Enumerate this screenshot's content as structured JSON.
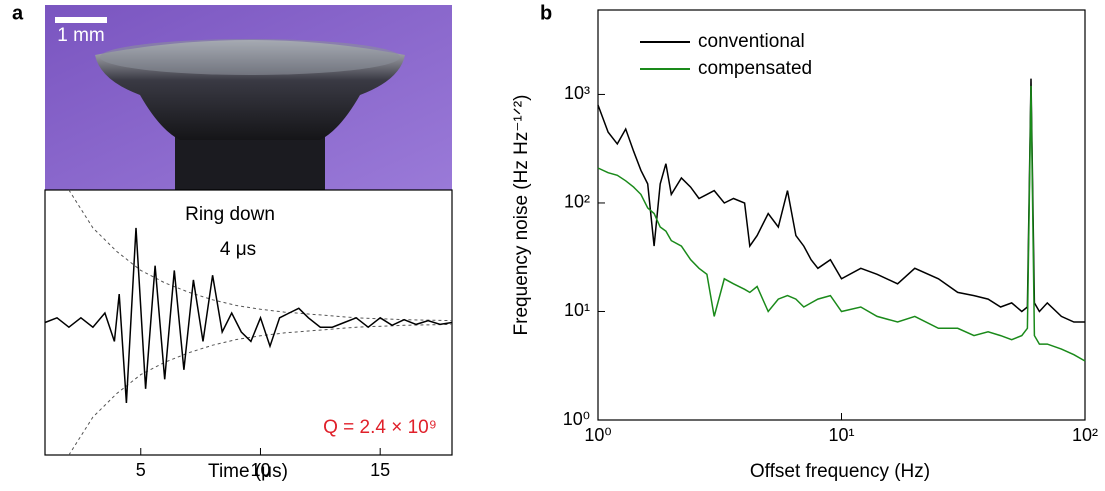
{
  "chart_data": [
    {
      "type": "line",
      "panel": "a",
      "scale_bar": "1 mm",
      "annotations": [
        "Ring down",
        "4 μs",
        "Q = 2.4 × 10⁹"
      ],
      "xlabel": "Time (μs)",
      "xlim": [
        1,
        18
      ],
      "xticks": [
        5,
        10,
        15
      ],
      "ylim": [
        -1.4,
        1.4
      ],
      "x": [
        1,
        1.5,
        2,
        2.5,
        3,
        3.5,
        3.9,
        4.1,
        4.4,
        4.8,
        5.2,
        5.6,
        6.0,
        6.4,
        6.8,
        7.2,
        7.6,
        8.0,
        8.4,
        8.8,
        9.2,
        9.6,
        10,
        10.4,
        10.8,
        11.2,
        11.6,
        12,
        12.5,
        13,
        13.5,
        14,
        14.5,
        15,
        15.5,
        16,
        16.5,
        17,
        17.5,
        18
      ],
      "series": [
        {
          "color": "#000000",
          "values": [
            0,
            0.05,
            -0.05,
            0.05,
            -0.05,
            0.1,
            -0.2,
            0.3,
            -0.85,
            1.0,
            -0.7,
            0.6,
            -0.6,
            0.55,
            -0.5,
            0.45,
            -0.2,
            0.5,
            -0.1,
            0.1,
            -0.1,
            -0.2,
            0.05,
            -0.25,
            0.05,
            0.1,
            0.15,
            0.05,
            -0.05,
            -0.05,
            0,
            0.05,
            -0.05,
            0.05,
            -0.03,
            0.03,
            -0.02,
            0.02,
            -0.02,
            0
          ]
        }
      ],
      "envelope": {
        "color": "#555555",
        "x": [
          2,
          3,
          4,
          5,
          6,
          7,
          8,
          9,
          10,
          11,
          12,
          14,
          16,
          18
        ],
        "upper": [
          1.4,
          1.0,
          0.75,
          0.55,
          0.42,
          0.32,
          0.24,
          0.18,
          0.14,
          0.11,
          0.09,
          0.05,
          0.03,
          0.02
        ],
        "lower": [
          -1.4,
          -1.0,
          -0.75,
          -0.55,
          -0.42,
          -0.32,
          -0.24,
          -0.18,
          -0.14,
          -0.11,
          -0.09,
          -0.05,
          -0.03,
          -0.02
        ]
      }
    },
    {
      "type": "line",
      "panel": "b",
      "xlabel": "Offset frequency (Hz)",
      "ylabel": "Frequency noise (Hz Hz⁻¹ᐟ²)",
      "xlog": true,
      "ylog": true,
      "xlim": [
        1,
        100
      ],
      "ylim": [
        1,
        6000
      ],
      "xticks": [
        {
          "value": 1,
          "label": "10⁰"
        },
        {
          "value": 10,
          "label": "10¹"
        },
        {
          "value": 100,
          "label": "10²"
        }
      ],
      "yticks": [
        {
          "value": 1,
          "label": "10⁰"
        },
        {
          "value": 10,
          "label": "10¹"
        },
        {
          "value": 100,
          "label": "10²"
        },
        {
          "value": 1000,
          "label": "10³"
        }
      ],
      "legend": "upper left",
      "x": [
        1,
        1.1,
        1.2,
        1.3,
        1.4,
        1.5,
        1.6,
        1.7,
        1.8,
        1.9,
        2.0,
        2.2,
        2.4,
        2.6,
        2.8,
        3.0,
        3.3,
        3.6,
        4.0,
        4.2,
        4.5,
        5,
        5.5,
        6,
        6.5,
        7,
        7.5,
        8,
        9,
        10,
        12,
        14,
        17,
        20,
        25,
        30,
        35,
        40,
        45,
        50,
        55,
        58,
        60,
        62,
        65,
        70,
        80,
        90,
        100
      ],
      "series": [
        {
          "name": "conventional",
          "color": "#000000",
          "values": [
            800,
            450,
            350,
            480,
            300,
            200,
            150,
            40,
            150,
            230,
            120,
            170,
            140,
            110,
            120,
            130,
            100,
            110,
            100,
            40,
            50,
            80,
            60,
            130,
            50,
            40,
            30,
            25,
            30,
            20,
            25,
            22,
            18,
            25,
            20,
            15,
            14,
            13,
            11,
            12,
            10,
            11,
            1400,
            12,
            10,
            12,
            9,
            8,
            8
          ]
        },
        {
          "name": "compensated",
          "color": "#1a8a1a",
          "values": [
            210,
            190,
            180,
            160,
            140,
            120,
            90,
            80,
            60,
            55,
            45,
            40,
            30,
            25,
            22,
            9,
            20,
            18,
            16,
            15,
            17,
            10,
            13,
            14,
            13,
            11,
            12,
            13,
            14,
            10,
            11,
            9,
            8,
            9,
            7,
            7,
            6,
            6.5,
            6,
            5.5,
            6,
            7,
            1200,
            6,
            5,
            5,
            4.5,
            4,
            3.5
          ]
        }
      ]
    }
  ]
}
